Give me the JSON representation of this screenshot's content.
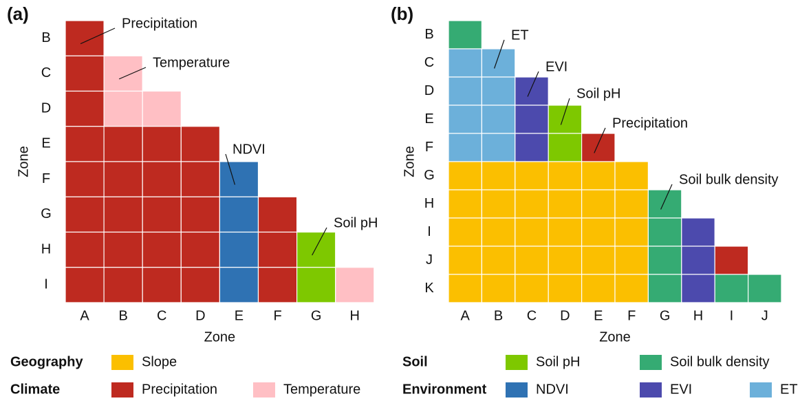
{
  "chart_data": [
    {
      "type": "matrix",
      "panel_label": "(a)",
      "x_label": "Zone",
      "y_label": "Zone",
      "rows": [
        "B",
        "C",
        "D",
        "E",
        "F",
        "G",
        "H",
        "I"
      ],
      "columns": [
        "A",
        "B",
        "C",
        "D",
        "E",
        "F",
        "G",
        "H"
      ],
      "cells": [
        [
          1
        ],
        [
          1,
          2
        ],
        [
          1,
          2,
          2
        ],
        [
          1,
          1,
          1,
          1
        ],
        [
          1,
          1,
          1,
          1,
          5
        ],
        [
          1,
          1,
          1,
          1,
          5,
          1
        ],
        [
          1,
          1,
          1,
          1,
          5,
          1,
          3
        ],
        [
          1,
          1,
          1,
          1,
          5,
          1,
          3,
          2
        ]
      ],
      "annotations": [
        "Precipitation",
        "Temperature",
        "NDVI",
        "Soil pH"
      ]
    },
    {
      "type": "matrix",
      "panel_label": "(b)",
      "x_label": "Zone",
      "y_label": "Zone",
      "rows": [
        "B",
        "C",
        "D",
        "E",
        "F",
        "G",
        "H",
        "I",
        "J",
        "K"
      ],
      "columns": [
        "A",
        "B",
        "C",
        "D",
        "E",
        "F",
        "G",
        "H",
        "I",
        "J"
      ],
      "cells": [
        [
          4
        ],
        [
          7,
          7
        ],
        [
          7,
          7,
          6
        ],
        [
          7,
          7,
          6,
          3
        ],
        [
          7,
          7,
          6,
          3,
          1
        ],
        [
          0,
          0,
          0,
          0,
          0,
          0
        ],
        [
          0,
          0,
          0,
          0,
          0,
          0,
          4
        ],
        [
          0,
          0,
          0,
          0,
          0,
          0,
          4,
          6
        ],
        [
          0,
          0,
          0,
          0,
          0,
          0,
          4,
          6,
          1
        ],
        [
          0,
          0,
          0,
          0,
          0,
          0,
          4,
          6,
          4,
          4
        ]
      ],
      "annotations": [
        "ET",
        "EVI",
        "Soil pH",
        "Precipitation",
        "Soil bulk density"
      ]
    }
  ],
  "legend": {
    "items": [
      {
        "name": "Slope",
        "color": "#fbbf00"
      },
      {
        "name": "Precipitation",
        "color": "#be2a20"
      },
      {
        "name": "Temperature",
        "color": "#ffbfc4"
      },
      {
        "name": "Soil pH",
        "color": "#7ec800"
      },
      {
        "name": "Soil bulk density",
        "color": "#35ab73"
      },
      {
        "name": "NDVI",
        "color": "#2f72b3"
      },
      {
        "name": "EVI",
        "color": "#4c4aad"
      },
      {
        "name": "ET",
        "color": "#6cb0da"
      }
    ],
    "groups": [
      {
        "name": "Geography",
        "items": [
          0
        ]
      },
      {
        "name": "Climate",
        "items": [
          1,
          2
        ]
      },
      {
        "name": "Soil",
        "items": [
          3,
          4
        ]
      },
      {
        "name": "Environment",
        "items": [
          5,
          6,
          7
        ]
      }
    ]
  }
}
